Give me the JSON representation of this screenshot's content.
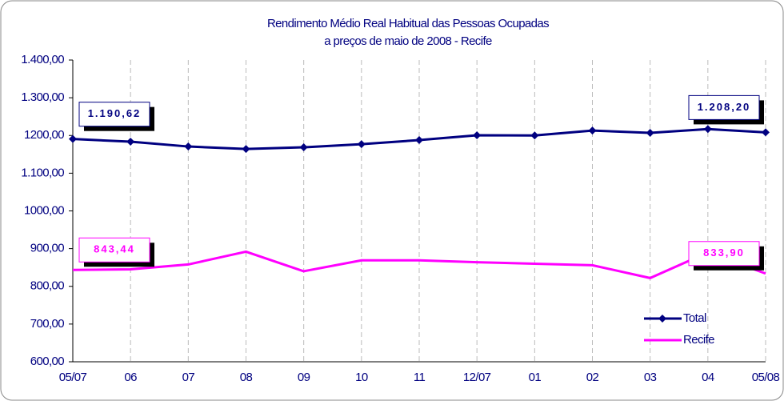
{
  "chart_data": {
    "type": "line",
    "title": "Rendimento Médio Real Habitual das Pessoas Ocupadas",
    "subtitle": "a preços de maio de 2008 - Recife",
    "categories": [
      "05/07",
      "06",
      "07",
      "08",
      "09",
      "10",
      "11",
      "12/07",
      "01",
      "02",
      "03",
      "04",
      "05/08"
    ],
    "series": [
      {
        "name": "Total",
        "color": "#000080",
        "marker": "diamond",
        "values": [
          1190.62,
          1183.5,
          1170.7,
          1164.3,
          1168.6,
          1177,
          1187.7,
          1200.4,
          1200,
          1213,
          1207,
          1217,
          1208.2
        ],
        "value_labels": [
          "1.190,62",
          null,
          null,
          null,
          null,
          null,
          null,
          null,
          null,
          null,
          null,
          null,
          "1.208,20"
        ]
      },
      {
        "name": "Recife",
        "color": "#ff00ff",
        "values": [
          843.44,
          845,
          858,
          892,
          840,
          869,
          869,
          864,
          860,
          856,
          822,
          890,
          833.9
        ],
        "value_labels": [
          "843,44",
          null,
          null,
          null,
          null,
          null,
          null,
          null,
          null,
          null,
          null,
          null,
          "833,90"
        ]
      }
    ],
    "ylim": [
      600,
      1400
    ],
    "yticks": [
      {
        "value": 600,
        "label": "600,00"
      },
      {
        "value": 700,
        "label": "700,00"
      },
      {
        "value": 800,
        "label": "800,00"
      },
      {
        "value": 900,
        "label": "900,00"
      },
      {
        "value": 1000,
        "label": "1000,00"
      },
      {
        "value": 1100,
        "label": "1.100,00"
      },
      {
        "value": 1200,
        "label": "1200,00"
      },
      {
        "value": 1300,
        "label": "1.300,00"
      },
      {
        "value": 1400,
        "label": "1.400,00"
      }
    ],
    "grid": true,
    "legend": "lower right"
  }
}
